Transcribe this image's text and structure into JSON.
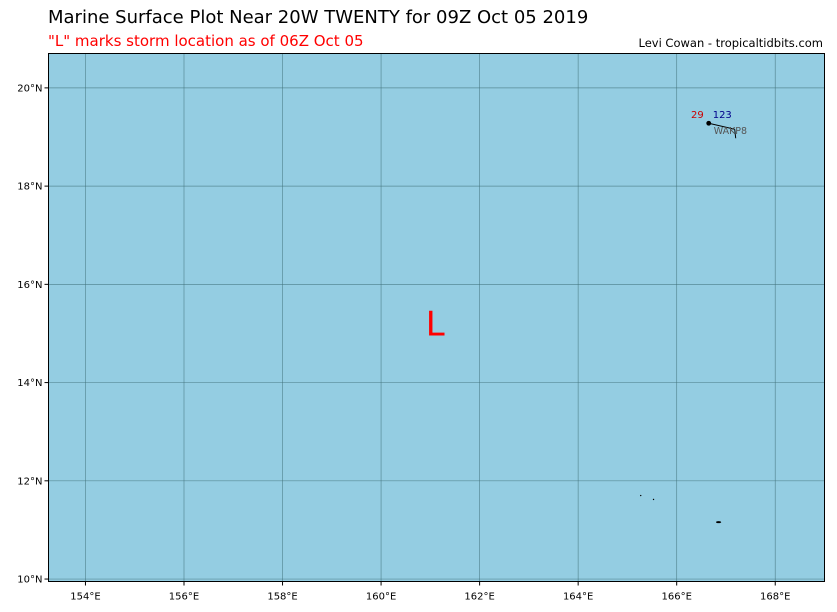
{
  "header": {
    "title": "Marine Surface Plot Near 20W TWENTY for 09Z Oct 05 2019",
    "subtitle": "\"L\" marks storm location as of 06Z Oct 05",
    "credit": "Levi Cowan - tropicaltidbits.com"
  },
  "map": {
    "ocean_color": "#94cde2",
    "grid_color": "#3f6f78",
    "lon_range": [
      153.25,
      169.0
    ],
    "lat_range": [
      9.95,
      20.7
    ],
    "lon_ticks": [
      154,
      156,
      158,
      160,
      162,
      164,
      166,
      168
    ],
    "lat_ticks": [
      10,
      12,
      14,
      16,
      18,
      20
    ],
    "lon_tick_labels": [
      "154°E",
      "156°E",
      "158°E",
      "160°E",
      "162°E",
      "164°E",
      "166°E",
      "168°E"
    ],
    "lat_tick_labels": [
      "10°N",
      "12°N",
      "14°N",
      "16°N",
      "18°N",
      "20°N"
    ]
  },
  "storm_marker": {
    "label": "L",
    "lon": 161.1,
    "lat": 15.2,
    "color": "#ff0000"
  },
  "stations": [
    {
      "id": "WAKP8",
      "lon": 166.65,
      "lat": 19.28,
      "temperature": "29",
      "pressure": "123",
      "temperature_color": "#cc0000",
      "pressure_color": "#00008b"
    }
  ],
  "islands": [
    {
      "lon": 165.27,
      "lat": 11.7
    },
    {
      "lon": 165.53,
      "lat": 11.62
    },
    {
      "lon": 166.85,
      "lat": 11.16
    }
  ]
}
